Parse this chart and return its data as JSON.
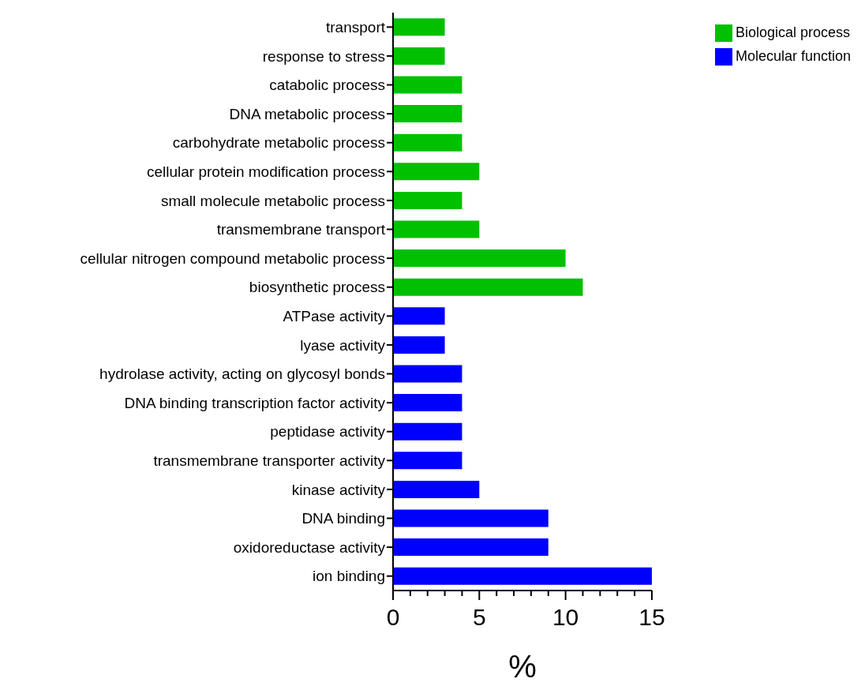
{
  "chart_data": {
    "type": "bar",
    "orientation": "horizontal",
    "stacked": true,
    "xlabel": "%",
    "categories": [
      "transport",
      "response to stress",
      "catabolic process",
      "DNA metabolic process",
      "carbohydrate metabolic process",
      "cellular protein modification process",
      "small molecule metabolic process",
      "transmembrane transport",
      "cellular nitrogen compound metabolic process",
      "biosynthetic process",
      "ATPase activity",
      "lyase activity",
      "hydrolase activity, acting on glycosyl bonds",
      "DNA binding transcription factor activity",
      "peptidase activity",
      "transmembrane transporter activity",
      "kinase activity",
      "DNA binding",
      "oxidoreductase activity",
      "ion binding"
    ],
    "series": [
      {
        "name": "Molecular function",
        "color": "#0000ff",
        "values": [
          null,
          null,
          null,
          null,
          null,
          null,
          null,
          null,
          null,
          null,
          3,
          3,
          4,
          4,
          4,
          4,
          5,
          9,
          9,
          15
        ]
      },
      {
        "name": "Biological process",
        "color": "#00c000",
        "values": [
          3,
          3,
          4,
          4,
          4,
          5,
          4,
          5,
          10,
          11,
          null,
          null,
          null,
          null,
          null,
          null,
          null,
          null,
          null,
          null
        ]
      }
    ],
    "xlim": [
      0,
      15
    ],
    "xticks": [
      0,
      {
        "value": 1,
        "label": null
      },
      {
        "value": 2,
        "label": null
      },
      {
        "value": 3,
        "label": null
      },
      {
        "value": 4,
        "label": null
      },
      5,
      {
        "value": 6,
        "label": null
      },
      {
        "value": 7,
        "label": null
      },
      {
        "value": 8,
        "label": null
      },
      {
        "value": 9,
        "label": null
      },
      10,
      {
        "value": 11,
        "label": null
      },
      {
        "value": 12,
        "label": null
      },
      {
        "value": 13,
        "label": null
      },
      {
        "value": 14,
        "label": null
      },
      15
    ],
    "legend": "top right"
  }
}
